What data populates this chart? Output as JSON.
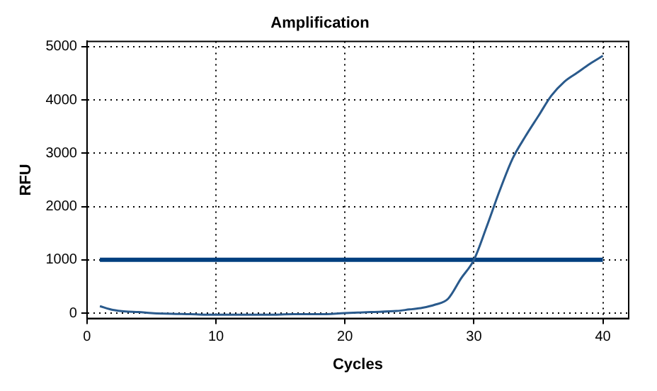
{
  "chart_data": {
    "type": "line",
    "title": "Amplification",
    "xlabel": "Cycles",
    "ylabel": "RFU",
    "xlim": [
      0,
      42
    ],
    "xticks": [
      0,
      10,
      20,
      30,
      40
    ],
    "ylim": [
      -100,
      5100
    ],
    "yticks": [
      0,
      1000,
      2000,
      3000,
      4000,
      5000
    ],
    "grid": true,
    "legend": false,
    "marker": "none",
    "line_style": "solid",
    "series": [
      {
        "color": "#2a5a8c",
        "x": [
          1,
          2,
          3,
          4,
          5,
          6,
          8,
          10,
          12,
          14,
          16,
          18,
          20,
          22,
          24,
          25,
          26,
          27,
          28,
          29,
          30,
          31,
          32,
          33,
          34,
          35,
          36,
          37,
          38,
          39,
          40
        ],
        "values": [
          130,
          60,
          30,
          20,
          0,
          -10,
          -20,
          -30,
          -30,
          -30,
          -20,
          -20,
          0,
          20,
          40,
          70,
          100,
          160,
          270,
          650,
          1000,
          1630,
          2300,
          2900,
          3320,
          3700,
          4080,
          4340,
          4510,
          4680,
          4830
        ]
      },
      {
        "color": "#003f7f",
        "x": [
          1,
          40
        ],
        "values": [
          1000,
          1000
        ]
      }
    ]
  }
}
